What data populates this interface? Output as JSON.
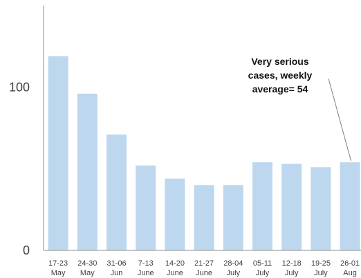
{
  "chart_data": {
    "type": "bar",
    "categories": [
      [
        "17-23",
        "May"
      ],
      [
        "24-30",
        "May"
      ],
      [
        "31-06",
        "Jun"
      ],
      [
        "7-13",
        "June"
      ],
      [
        "14-20",
        "June"
      ],
      [
        "21-27",
        "June"
      ],
      [
        "28-04",
        "July"
      ],
      [
        "05-11",
        "July"
      ],
      [
        "12-18",
        "July"
      ],
      [
        "19-25",
        "July"
      ],
      [
        "26-01",
        "Aug"
      ]
    ],
    "values": [
      119,
      96,
      71,
      52,
      44,
      40,
      40,
      54,
      53,
      51,
      54
    ],
    "ylim": [
      0,
      150
    ],
    "yticks": [
      0,
      100
    ],
    "grid": false,
    "bar_color": "#bdd7ee",
    "axis_color": "#8c8c8c",
    "annotation": {
      "lines": [
        "Very serious",
        "cases, weekly",
        "average= 54"
      ],
      "target_index": 10
    }
  }
}
